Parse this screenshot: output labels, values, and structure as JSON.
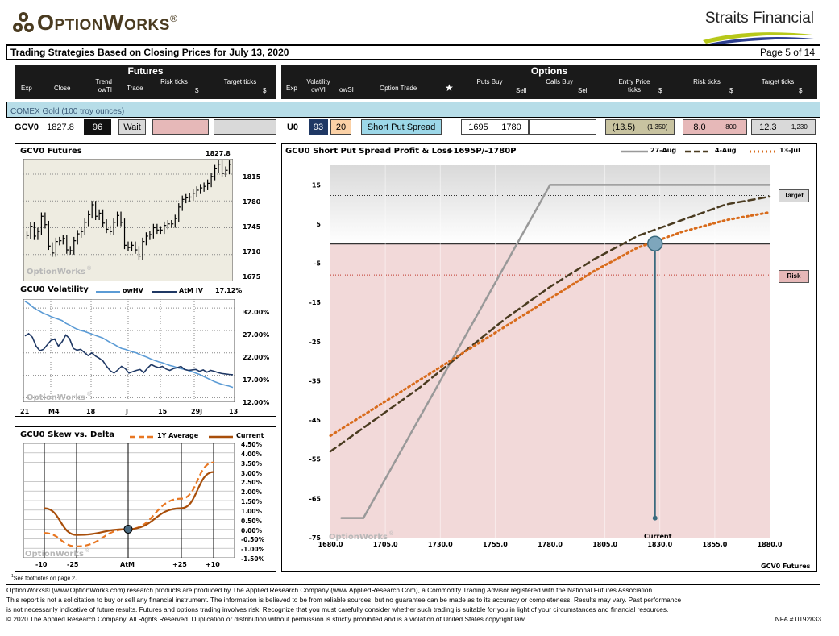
{
  "header": {
    "logo": "OptionWorks",
    "logo_mark": "®",
    "partner": "Straits Financial",
    "title": "Trading Strategies Based on Closing Prices for July 13, 2020",
    "page": "Page 5 of 14"
  },
  "colors": {
    "risk_fill": "#e6b8b8",
    "entry_fill": "#c8c3a0",
    "target_fill": "#d9d9d9",
    "cyan_band": "#b7dde8",
    "trade_button": "#9cd7e8",
    "owsi_fill": "#fbd1a6"
  },
  "futures": {
    "section": "Futures",
    "columns": [
      "Exp",
      "Close",
      "Trend owTI",
      "Trade",
      "Risk ticks",
      "$",
      "Target ticks",
      "$"
    ],
    "exp": "GCV0",
    "close": "1827.8",
    "trend": "96",
    "trade": "Wait"
  },
  "options": {
    "section": "Options",
    "columns": [
      "Exp",
      "Volatility owVI",
      "owSI",
      "Option Trade",
      "★",
      "Puts Buy",
      "Sell",
      "Calls Buy",
      "Sell",
      "Entry Price ticks",
      "$",
      "Risk ticks",
      "$",
      "Target ticks",
      "$"
    ],
    "exp": "U0",
    "owvi": "93",
    "owsi": "20",
    "trade": "Short Put Spread",
    "puts_buy": "1695",
    "puts_sell": "1780",
    "entry_ticks": "(13.5)",
    "entry_usd": "(1,350)",
    "risk_ticks": "8.0",
    "risk_usd": "800",
    "target_ticks": "12.3",
    "target_usd": "1,230"
  },
  "instrument_band": "COMEX Gold  (100 troy ounces)",
  "futures_chart": {
    "title": "GCV0 Futures",
    "last": "1827.8",
    "watermark": "OptionWorks",
    "y_ticks": [
      "1815",
      "1780",
      "1745",
      "1710",
      "1675"
    ],
    "chart_data": {
      "type": "bar",
      "ylim": [
        1675,
        1835
      ],
      "close": [
        1735,
        1747,
        1734,
        1740,
        1760,
        1749,
        1721,
        1712,
        1727,
        1728,
        1731,
        1716,
        1715,
        1728,
        1737,
        1740,
        1752,
        1762,
        1775,
        1760,
        1764,
        1751,
        1743,
        1740,
        1752,
        1761,
        1752,
        1722,
        1719,
        1722,
        1716,
        1708,
        1727,
        1734,
        1736,
        1745,
        1742,
        1742,
        1748,
        1750,
        1750,
        1757,
        1772,
        1782,
        1784,
        1785,
        1790,
        1794,
        1797,
        1799,
        1803,
        1812,
        1822,
        1828,
        1816,
        1820,
        1827.8
      ]
    }
  },
  "vol_chart": {
    "title": "GCU0 Volatility",
    "legend": [
      "owHV",
      "AtM IV"
    ],
    "last": "17.12%",
    "watermark": "OptionWorks",
    "y_ticks": [
      "32.00%",
      "27.00%",
      "22.00%",
      "17.00%",
      "12.00%"
    ],
    "x_ticks": [
      "21",
      "M4",
      "18",
      "J",
      "15",
      "29J",
      "13"
    ],
    "chart_data": {
      "type": "line",
      "ylim": [
        11,
        34
      ],
      "series": [
        {
          "name": "owHV",
          "color": "#5b9bd5",
          "values": [
            33.5,
            33,
            32.3,
            31.7,
            31.3,
            30.8,
            30.5,
            30.1,
            29.8,
            29.5,
            29.2,
            28.6,
            28.2,
            27.7,
            27.3,
            27,
            26.8,
            26.5,
            26.2,
            25.9,
            25.6,
            25.3,
            24.8,
            24.3,
            23.9,
            23.4,
            23,
            22.8,
            22.5,
            22.2,
            22,
            21.6,
            21.3,
            21,
            20.6,
            20.3,
            20,
            19.8,
            19.5,
            19.2,
            19,
            18.7,
            18.5,
            18.3,
            18.1,
            17.8,
            17.5,
            17.2,
            16.8,
            16.4,
            16,
            15.6,
            15.3,
            15,
            14.8,
            14.6,
            14.3
          ]
        },
        {
          "name": "AtM IV",
          "color": "#1f3864",
          "values": [
            25.8,
            26.3,
            25.5,
            23.5,
            22.5,
            22.8,
            23.8,
            24.8,
            25.1,
            23.5,
            24.5,
            26,
            25.2,
            23,
            22.6,
            22.8,
            22.1,
            21.4,
            22,
            21.3,
            20.8,
            20.2,
            19,
            18,
            17.5,
            18.2,
            19,
            18.5,
            17.5,
            17.8,
            18.1,
            18.3,
            17.6,
            18.6,
            19.4,
            19,
            18.7,
            19,
            18.4,
            18.1,
            18.5,
            18.7,
            19,
            18.3,
            18.1,
            18.2,
            18.3,
            17.9,
            18.2,
            17.7,
            18.1,
            17.9,
            17.6,
            17.4,
            17.3,
            17.2,
            17.12
          ]
        }
      ]
    }
  },
  "skew_chart": {
    "title": "GCU0 Skew vs. Delta",
    "legend": [
      "1Y Average",
      "Current"
    ],
    "watermark": "OptionWorks",
    "y_ticks": [
      "4.50%",
      "4.00%",
      "3.50%",
      "3.00%",
      "2.50%",
      "2.00%",
      "1.50%",
      "1.00%",
      "0.50%",
      "0.00%",
      "-0.50%",
      "-1.00%",
      "-1.50%"
    ],
    "x_ticks": [
      "-10",
      "-25",
      "AtM",
      "+25",
      "+10"
    ],
    "chart_data": {
      "type": "line",
      "x": [
        -10,
        -25,
        0,
        25,
        10
      ],
      "series": [
        {
          "name": "1Y Average",
          "color": "#e87722",
          "values": [
            -0.2,
            -0.9,
            0,
            1.6,
            3.5
          ]
        },
        {
          "name": "Current",
          "color": "#a84e0a",
          "values": [
            1.1,
            -0.3,
            0,
            1.1,
            3.0
          ]
        }
      ]
    }
  },
  "pl_chart": {
    "title": "GCU0 Short Put Spread Profit & Loss",
    "strikes": "+1695P/-1780P",
    "legend": [
      "27-Aug",
      "4-Aug",
      "13-Jul"
    ],
    "target_label": "Target",
    "risk_label": "Risk",
    "current_label": "Current",
    "x_axis_label": "GCV0 Futures",
    "watermark": "OptionWorks",
    "x_ticks": [
      "1680.0",
      "1705.0",
      "1730.0",
      "1755.0",
      "1780.0",
      "1805.0",
      "1830.0",
      "1855.0",
      "1880.0"
    ],
    "y_ticks": [
      "15",
      "5",
      "-5",
      "-15",
      "-25",
      "-35",
      "-45",
      "-55",
      "-65",
      "-75"
    ],
    "chart_data": {
      "type": "line",
      "xlim": [
        1680,
        1880
      ],
      "ylim": [
        -75,
        20
      ],
      "target": 12.3,
      "risk": -8,
      "current": 1827.8,
      "series": [
        {
          "name": "27-Aug",
          "color": "#999999",
          "x": [
            1685,
            1695,
            1780,
            1880
          ],
          "y": [
            -70,
            -70,
            15,
            15
          ]
        },
        {
          "name": "4-Aug",
          "color": "#4a3b20",
          "x": [
            1680,
            1700,
            1720,
            1740,
            1760,
            1780,
            1800,
            1820,
            1840,
            1860,
            1880
          ],
          "y": [
            -53,
            -45,
            -37,
            -28,
            -19,
            -11,
            -4,
            2,
            6,
            10,
            12
          ]
        },
        {
          "name": "13-Jul",
          "color": "#d86b1b",
          "x": [
            1680,
            1700,
            1720,
            1740,
            1760,
            1780,
            1800,
            1820,
            1840,
            1860,
            1880
          ],
          "y": [
            -49,
            -42,
            -35,
            -28,
            -21,
            -14,
            -7,
            -1,
            3,
            6,
            8
          ]
        }
      ]
    }
  },
  "footnote": "See footnotes on page 2.",
  "footnote_mark": "1",
  "disclaimer": [
    "OptionWorks® (www.OptionWorks.com) research products are produced by The Applied Research Company (www.AppliedResearch.Com), a Commodity Trading Advisor registered with the National Futures Association.",
    "This report is not a solicitation to buy or sell any financial instrument.  The information is believed to be from reliable sources, but no guarantee can be made as to its accuracy or completeness.  Results may vary.  Past performance",
    "is not necessarily indicative of future results.  Futures and options trading involves risk. Recognize that you must carefully consider whether such trading is suitable for you in light of your circumstances and financial resources.",
    "© 2020 The Applied Research Company.  All Rights Reserved.  Duplication or distribution without permission is strictly prohibited and is a violation of United States copyright law."
  ],
  "nfa": "NFA # 0192833"
}
